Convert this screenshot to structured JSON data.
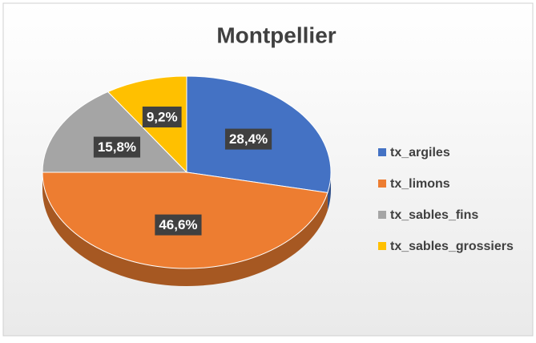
{
  "chart_data": {
    "type": "pie",
    "title": "Montpellier",
    "categories": [
      "tx_argiles",
      "tx_limons",
      "tx_sables_fins",
      "tx_sables_grossiers"
    ],
    "values": [
      28.4,
      46.6,
      15.8,
      9.2
    ],
    "value_labels": [
      "28,4%",
      "46,6%",
      "15,8%",
      "9,2%"
    ],
    "colors": [
      "#4472c4",
      "#ed7d31",
      "#a5a5a5",
      "#ffc000"
    ],
    "legend": "right"
  }
}
